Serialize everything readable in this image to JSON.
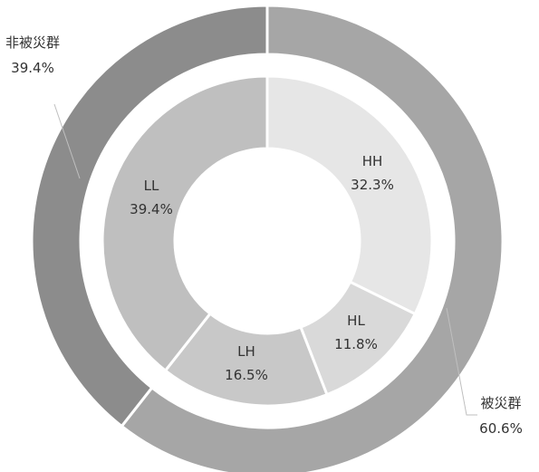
{
  "chart_data": {
    "type": "pie",
    "subtype": "nested-donut",
    "title": "",
    "series": [
      {
        "ring": "outer",
        "slices": [
          {
            "label": "被災群",
            "value": 60.6,
            "value_label": "60.6%",
            "color": "#a6a6a6"
          },
          {
            "label": "非被災群",
            "value": 39.4,
            "value_label": "39.4%",
            "color": "#8c8c8c"
          }
        ]
      },
      {
        "ring": "inner",
        "slices": [
          {
            "label": "HH",
            "value": 32.3,
            "value_label": "32.3%",
            "color": "#e6e6e6"
          },
          {
            "label": "HL",
            "value": 11.8,
            "value_label": "11.8%",
            "color": "#d9d9d9"
          },
          {
            "label": "LH",
            "value": 16.5,
            "value_label": "16.5%",
            "color": "#c8c8c8"
          },
          {
            "label": "LL",
            "value": 39.4,
            "value_label": "39.4%",
            "color": "#bfbfbf"
          }
        ]
      }
    ],
    "start_angle": "12 o'clock",
    "direction": "clockwise",
    "label_color": "#333333",
    "separator_color": "#ffffff",
    "leader_line_color": "#bfbfbf",
    "background": "#ffffff"
  }
}
